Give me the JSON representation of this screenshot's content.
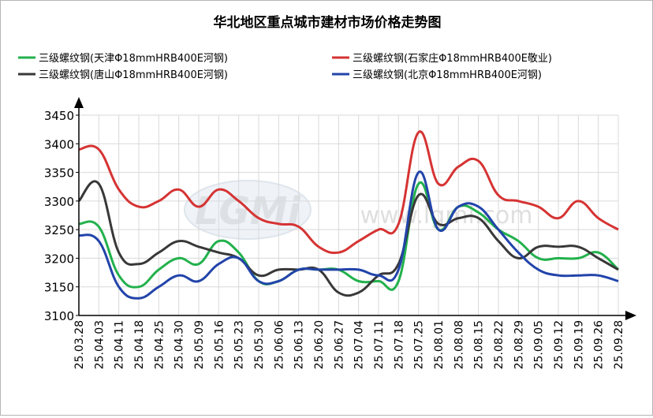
{
  "chart_data": {
    "type": "line",
    "title": "华北地区重点城市建材市场价格走势图",
    "watermark": {
      "logo_text": "LGMi",
      "site_text": "www.lgmi.com"
    },
    "xlabel": "",
    "ylabel": "",
    "ylim": [
      3100,
      3450
    ],
    "yticks": [
      3100,
      3150,
      3200,
      3250,
      3300,
      3350,
      3400,
      3450
    ],
    "grid": true,
    "legend_position": "top",
    "categories": [
      "25.03.28",
      "25.04.03",
      "25.04.11",
      "25.04.18",
      "25.04.25",
      "25.04.30",
      "25.05.09",
      "25.05.16",
      "25.05.23",
      "25.05.30",
      "25.06.06",
      "25.06.13",
      "25.06.20",
      "25.06.27",
      "25.07.04",
      "25.07.11",
      "25.07.18",
      "25.07.25",
      "25.08.01",
      "25.08.08",
      "25.08.15",
      "25.08.22",
      "25.08.29",
      "25.09.05",
      "25.09.12",
      "25.09.19",
      "25.09.26",
      "25.09.28"
    ],
    "series": [
      {
        "name": "三级螺纹钢(天津Φ18mmHRB400E河钢)",
        "color": "#22b14c",
        "values": [
          3260,
          3255,
          3170,
          3150,
          3180,
          3200,
          3190,
          3230,
          3210,
          3160,
          3160,
          3180,
          3180,
          3180,
          3160,
          3160,
          3160,
          3330,
          3250,
          3290,
          3280,
          3250,
          3230,
          3200,
          3200,
          3200,
          3210,
          3180
        ]
      },
      {
        "name": "三级螺纹钢(石家庄Φ18mmHRB400E敬业)",
        "color": "#d63333",
        "values": [
          3390,
          3390,
          3320,
          3290,
          3300,
          3320,
          3290,
          3320,
          3300,
          3270,
          3260,
          3255,
          3220,
          3210,
          3230,
          3250,
          3260,
          3420,
          3330,
          3360,
          3370,
          3310,
          3300,
          3290,
          3270,
          3300,
          3270,
          3250
        ]
      },
      {
        "name": "三级螺纹钢(唐山Φ18mmHRB400E河钢)",
        "color": "#383838",
        "values": [
          3300,
          3330,
          3210,
          3190,
          3210,
          3230,
          3220,
          3210,
          3200,
          3170,
          3180,
          3180,
          3180,
          3140,
          3140,
          3170,
          3190,
          3310,
          3260,
          3270,
          3270,
          3230,
          3200,
          3220,
          3220,
          3220,
          3200,
          3180
        ]
      },
      {
        "name": "三级螺纹钢(北京Φ18mmHRB400E河钢)",
        "color": "#2244aa",
        "values": [
          3240,
          3230,
          3150,
          3130,
          3150,
          3170,
          3160,
          3190,
          3200,
          3160,
          3160,
          3180,
          3180,
          3180,
          3180,
          3170,
          3180,
          3350,
          3250,
          3290,
          3290,
          3250,
          3210,
          3180,
          3170,
          3170,
          3170,
          3160
        ]
      }
    ]
  }
}
